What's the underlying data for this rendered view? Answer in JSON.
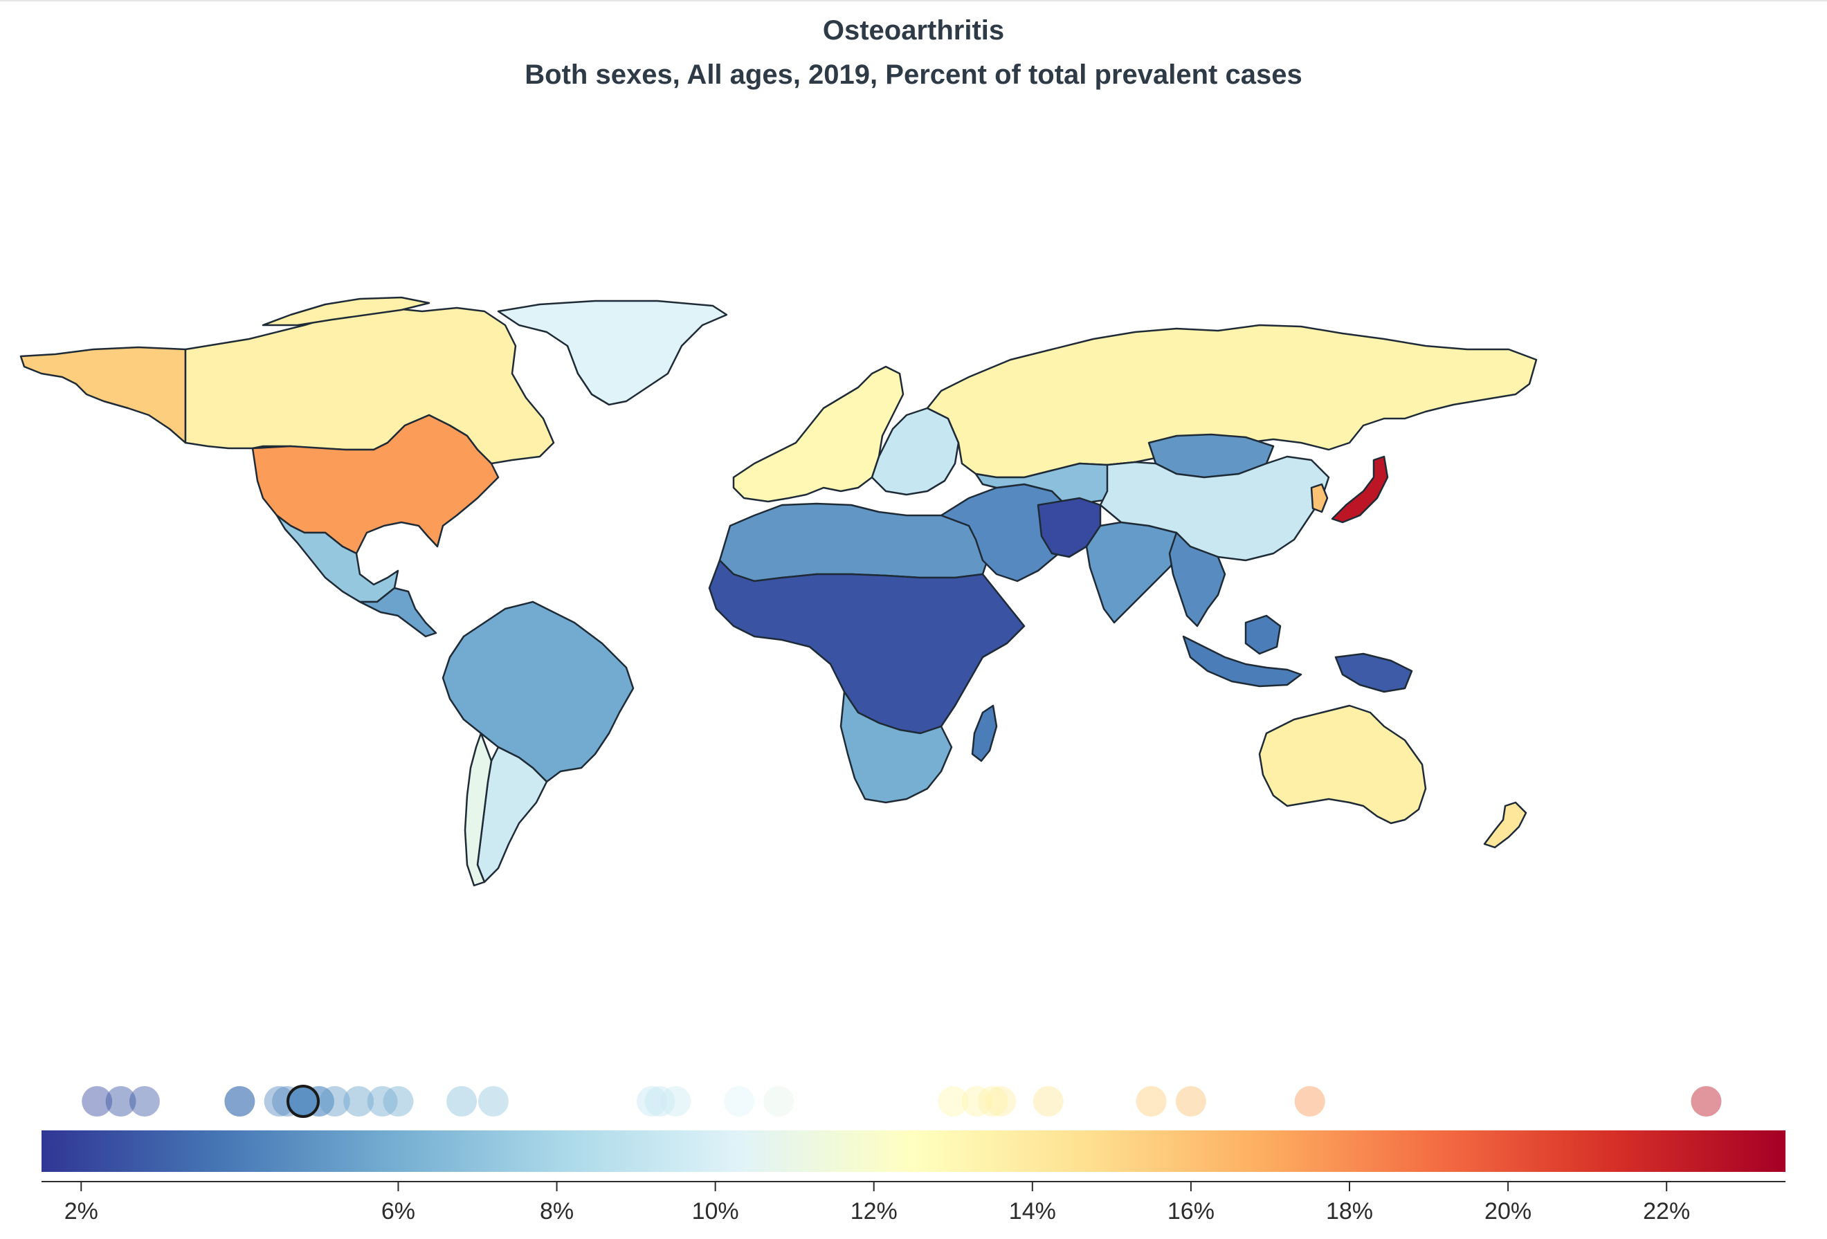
{
  "header": {
    "title": "Osteoarthritis",
    "subtitle": "Both sexes, All ages, 2019, Percent of total prevalent cases"
  },
  "legend": {
    "min_value": 1.5,
    "max_value": 23.5,
    "selected_value": 4.8,
    "ticks": [
      {
        "value": 2,
        "label": "2%"
      },
      {
        "value": 6,
        "label": "6%"
      },
      {
        "value": 8,
        "label": "8%"
      },
      {
        "value": 10,
        "label": "10%"
      },
      {
        "value": 12,
        "label": "12%"
      },
      {
        "value": 14,
        "label": "14%"
      },
      {
        "value": 16,
        "label": "16%"
      },
      {
        "value": 18,
        "label": "18%"
      },
      {
        "value": 20,
        "label": "20%"
      },
      {
        "value": 22,
        "label": "22%"
      }
    ],
    "color_stops": [
      "#313695",
      "#4575b4",
      "#74add1",
      "#abd9e9",
      "#e0f3f8",
      "#ffffbf",
      "#fee090",
      "#fdae61",
      "#f46d43",
      "#d73027",
      "#a50026"
    ]
  },
  "map": {
    "regions": [
      {
        "name": "Canada",
        "value": 13.5
      },
      {
        "name": "Alaska",
        "value": 15.5
      },
      {
        "name": "United States",
        "value": 17.5
      },
      {
        "name": "Greenland",
        "value": 10.3
      },
      {
        "name": "Mexico",
        "value": 7.2
      },
      {
        "name": "Central America",
        "value": 5.5
      },
      {
        "name": "Brazil",
        "value": 5.8
      },
      {
        "name": "Argentina",
        "value": 9.5
      },
      {
        "name": "Chile",
        "value": 10.8
      },
      {
        "name": "Western Europe",
        "value": 13.0
      },
      {
        "name": "Eastern Europe",
        "value": 9.2
      },
      {
        "name": "Russia",
        "value": 13.3
      },
      {
        "name": "North Africa",
        "value": 5.0
      },
      {
        "name": "Sub-Saharan Africa",
        "value": 2.5
      },
      {
        "name": "Southern Africa",
        "value": 6.0
      },
      {
        "name": "Madagascar",
        "value": 4.0
      },
      {
        "name": "Middle East",
        "value": 4.5
      },
      {
        "name": "Central Asia",
        "value": 6.8
      },
      {
        "name": "Mongolia",
        "value": 5.0
      },
      {
        "name": "China",
        "value": 9.3
      },
      {
        "name": "Pakistan",
        "value": 2.2
      },
      {
        "name": "India",
        "value": 5.2
      },
      {
        "name": "Southeast Asia",
        "value": 4.6
      },
      {
        "name": "Indonesia",
        "value": 4.0
      },
      {
        "name": "Papua New Guinea",
        "value": 2.8
      },
      {
        "name": "Japan",
        "value": 22.5
      },
      {
        "name": "Korea",
        "value": 16.0
      },
      {
        "name": "Australia",
        "value": 13.6
      },
      {
        "name": "New Zealand",
        "value": 14.2
      }
    ]
  }
}
